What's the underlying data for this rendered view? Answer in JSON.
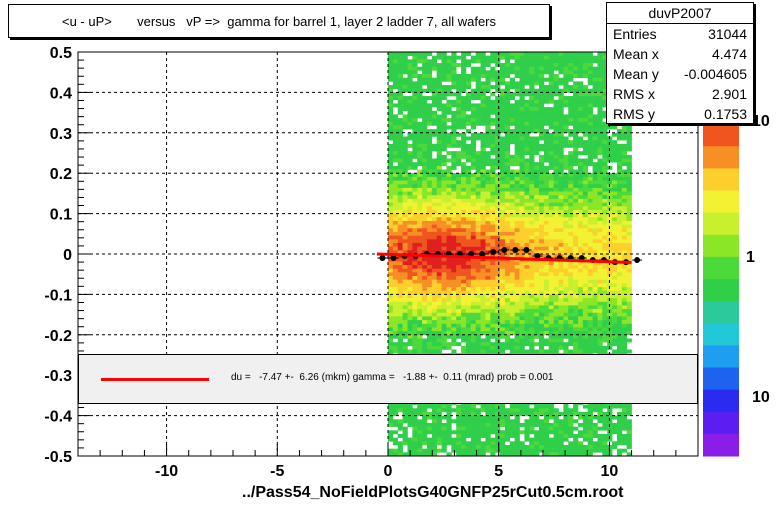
{
  "title": "<u - uP>       versus   vP =>  gamma for barrel 1, layer 2 ladder 7, all wafers",
  "x_title": "../Pass54_NoFieldPlotsG40GNFP25rCut0.5cm.root",
  "stats": {
    "name": "duvP2007",
    "rows": [
      {
        "label": "Entries",
        "value": "31044"
      },
      {
        "label": "Mean x",
        "value": "4.474"
      },
      {
        "label": "Mean y",
        "value": "-0.004605"
      },
      {
        "label": "RMS x",
        "value": "2.901"
      },
      {
        "label": "RMS y",
        "value": "0.1753"
      }
    ]
  },
  "fit": {
    "text": "du =   -7.47 +-  6.26 (mkm) gamma =   -1.88 +-  0.11 (mrad) prob = 0.001",
    "line_color": "#ff0000"
  },
  "palette_labels": [
    "10",
    "1",
    "10"
  ],
  "chart_data": {
    "type": "heatmap",
    "title": "<u - uP>       versus   vP =>  gamma for barrel 1, layer 2 ladder 7, all wafers",
    "xlabel": "../Pass54_NoFieldPlotsG40GNFP25rCut0.5cm.root",
    "ylabel": "",
    "xlim": [
      -14,
      14
    ],
    "ylim": [
      -0.5,
      0.5
    ],
    "x_ticks": [
      "-10",
      "-5",
      "0",
      "5",
      "10"
    ],
    "y_ticks": [
      "-0.5",
      "-0.4",
      "-0.3",
      "-0.2",
      "-0.1",
      "0",
      "0.1",
      "0.2",
      "0.3",
      "0.4",
      "0.5"
    ],
    "grid": true,
    "heatmap_x_range": [
      0,
      11
    ],
    "profile_points": {
      "x": [
        -0.25,
        0.25,
        0.75,
        1.25,
        1.75,
        2.25,
        2.75,
        3.25,
        3.75,
        4.25,
        4.75,
        5.25,
        5.75,
        6.25,
        6.75,
        7.25,
        7.75,
        8.25,
        8.75,
        9.25,
        9.75,
        10.25,
        10.75,
        11.25
      ],
      "y": [
        -0.01,
        -0.01,
        -0.005,
        -0.005,
        0.0,
        0.0,
        0.0,
        0.0,
        0.0,
        0.0,
        0.005,
        0.01,
        0.01,
        0.01,
        -0.005,
        -0.01,
        -0.01,
        -0.01,
        -0.01,
        -0.015,
        -0.015,
        -0.02,
        -0.02,
        -0.015
      ]
    },
    "fit_line": {
      "x": [
        -0.5,
        11.0
      ],
      "y": [
        0.0,
        -0.021
      ]
    },
    "color": "#ff0000"
  }
}
